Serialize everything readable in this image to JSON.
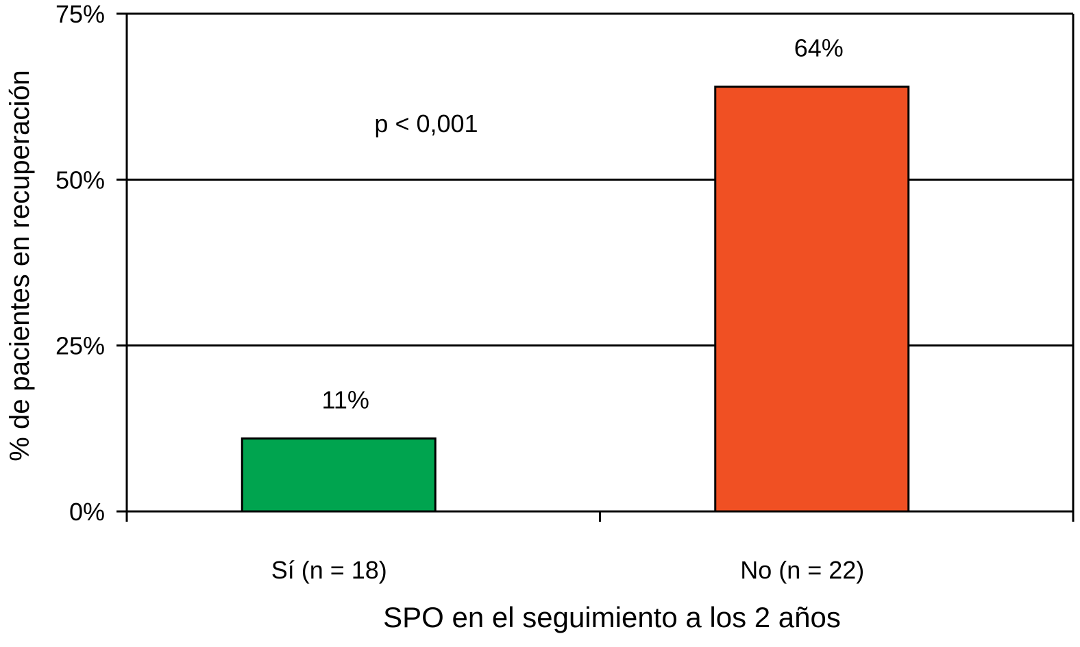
{
  "chart_data": {
    "type": "bar",
    "title": "",
    "xlabel": "SPO en el seguimiento a los 2 años",
    "ylabel": "% de pacientes en recuperación",
    "categories": [
      "Sí (n = 18)",
      "No (n = 22)"
    ],
    "values": [
      11,
      64
    ],
    "value_labels": [
      "11%",
      "64%"
    ],
    "colors": [
      "#00a44f",
      "#f05023"
    ],
    "ylim": [
      0,
      75
    ],
    "yticks": [
      0,
      25,
      50,
      75
    ],
    "ytick_labels": [
      "0%",
      "25%",
      "50%",
      "75%"
    ],
    "grid": true,
    "legend": "none",
    "annotation": "p < 0,001"
  }
}
